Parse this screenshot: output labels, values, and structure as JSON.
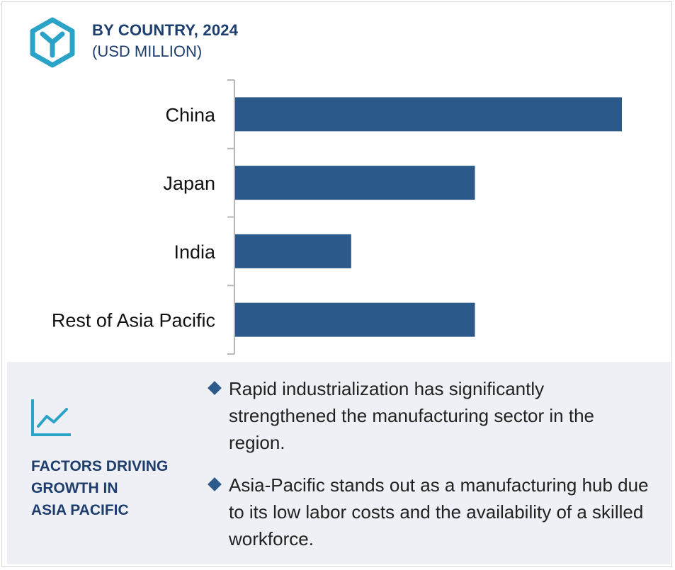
{
  "header": {
    "title": "BY COUNTRY, 2024",
    "subtitle": "(USD MILLION)",
    "logo_icon": "hexagon-y-icon"
  },
  "colors": {
    "bar": "#2b5a8a",
    "heading": "#1e3e6e",
    "accent": "#2aa3c7",
    "panel_bg": "#eef0f5"
  },
  "chart_data": {
    "type": "bar",
    "orientation": "horizontal",
    "categories": [
      "China",
      "Japan",
      "India",
      "Rest of Asia Pacific"
    ],
    "values": [
      100,
      62,
      30,
      62
    ],
    "title": "BY COUNTRY, 2024",
    "subtitle": "(USD MILLION)",
    "xlim": [
      0,
      100
    ],
    "grid": false,
    "legend": "none"
  },
  "factors_panel": {
    "icon": "trend-chart-icon",
    "heading_lines": [
      "FACTORS DRIVING",
      "GROWTH IN",
      "ASIA PACIFIC"
    ],
    "bullets": [
      "Rapid industrialization has significantly strengthened the manufacturing sector in the region.",
      "Asia-Pacific stands out as a manufacturing hub due to its low labor costs and the availability of a skilled workforce."
    ]
  }
}
